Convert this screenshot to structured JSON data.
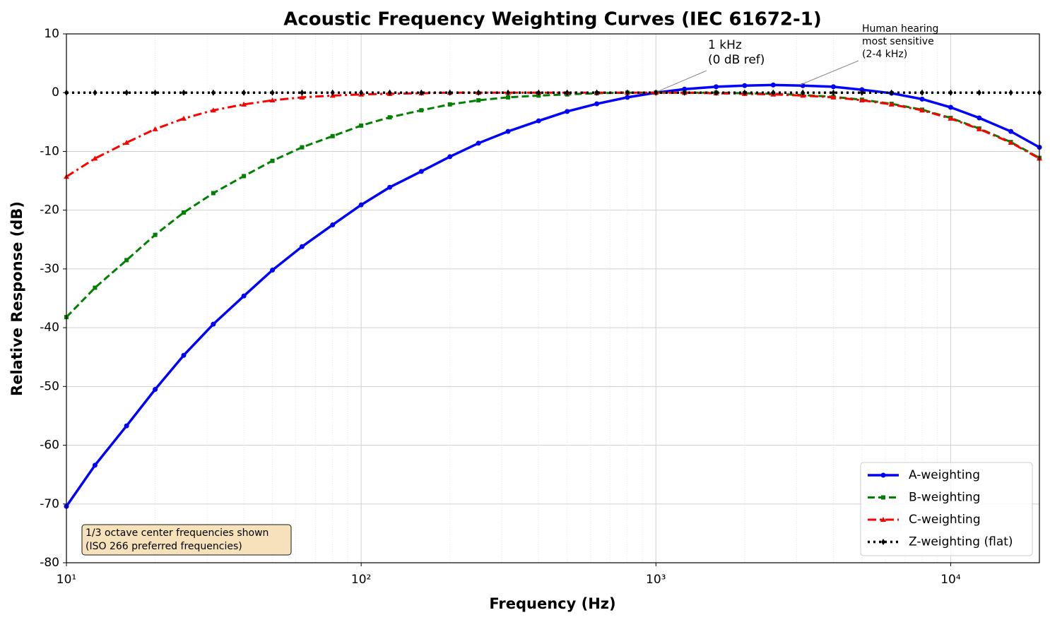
{
  "chart_data": {
    "type": "line",
    "title": "Acoustic Frequency Weighting Curves (IEC 61672-1)",
    "xlabel": "Frequency (Hz)",
    "ylabel": "Relative Response (dB)",
    "x": [
      10,
      12.5,
      16,
      20,
      25,
      31.5,
      40,
      50,
      63,
      80,
      100,
      125,
      160,
      200,
      250,
      315,
      400,
      500,
      630,
      800,
      1000,
      1250,
      1600,
      2000,
      2500,
      3150,
      4000,
      5000,
      6300,
      8000,
      10000,
      12500,
      16000,
      20000
    ],
    "xscale": "log",
    "xlim": [
      10,
      20000
    ],
    "xticks": [
      {
        "value": 10,
        "label": "10¹"
      },
      {
        "value": 100,
        "label": "10²"
      },
      {
        "value": 1000,
        "label": "10³"
      },
      {
        "value": 10000,
        "label": "10⁴"
      }
    ],
    "ylim": [
      -80,
      10
    ],
    "yticks": [
      -80,
      -70,
      -60,
      -50,
      -40,
      -30,
      -20,
      -10,
      0,
      10
    ],
    "grid": true,
    "minor_grid": true,
    "legend": "lower right",
    "series": [
      {
        "name": "A-weighting",
        "color": "#0000ff",
        "linestyle": "solid",
        "marker": "circle",
        "values": [
          -70.4,
          -63.4,
          -56.7,
          -50.5,
          -44.7,
          -39.4,
          -34.6,
          -30.2,
          -26.2,
          -22.5,
          -19.1,
          -16.1,
          -13.4,
          -10.9,
          -8.6,
          -6.6,
          -4.8,
          -3.2,
          -1.9,
          -0.8,
          0,
          0.6,
          1.0,
          1.2,
          1.3,
          1.2,
          1.0,
          0.5,
          -0.1,
          -1.1,
          -2.5,
          -4.3,
          -6.6,
          -9.3
        ]
      },
      {
        "name": "B-weighting",
        "color": "#008000",
        "linestyle": "dashed",
        "marker": "square",
        "values": [
          -38.2,
          -33.2,
          -28.5,
          -24.2,
          -20.4,
          -17.1,
          -14.2,
          -11.6,
          -9.3,
          -7.4,
          -5.6,
          -4.2,
          -3.0,
          -2.0,
          -1.3,
          -0.8,
          -0.5,
          -0.3,
          -0.1,
          0,
          0,
          0,
          0,
          -0.1,
          -0.2,
          -0.4,
          -0.7,
          -1.2,
          -1.9,
          -2.9,
          -4.3,
          -6.1,
          -8.4,
          -11.1
        ]
      },
      {
        "name": "C-weighting",
        "color": "#ff0000",
        "linestyle": "dashdot",
        "marker": "triangle",
        "values": [
          -14.3,
          -11.2,
          -8.5,
          -6.2,
          -4.4,
          -3.0,
          -2.0,
          -1.3,
          -0.8,
          -0.5,
          -0.3,
          -0.2,
          -0.1,
          0,
          0,
          0,
          0,
          0,
          0,
          0,
          0,
          0,
          -0.1,
          -0.2,
          -0.3,
          -0.5,
          -0.8,
          -1.3,
          -2.0,
          -3.0,
          -4.4,
          -6.2,
          -8.5,
          -11.2
        ]
      },
      {
        "name": "Z-weighting (flat)",
        "color": "#000000",
        "linestyle": "dotted",
        "marker": "diamond",
        "values": [
          0,
          0,
          0,
          0,
          0,
          0,
          0,
          0,
          0,
          0,
          0,
          0,
          0,
          0,
          0,
          0,
          0,
          0,
          0,
          0,
          0,
          0,
          0,
          0,
          0,
          0,
          0,
          0,
          0,
          0,
          0,
          0,
          0,
          0
        ]
      }
    ],
    "annotations": [
      {
        "text": [
          "1 kHz",
          "(0 dB ref)"
        ]
      },
      {
        "text": [
          "Human hearing",
          "most sensitive",
          "(2-4 kHz)"
        ]
      }
    ],
    "note": [
      "1/3 octave center frequencies shown",
      "(ISO 266 preferred frequencies)"
    ]
  }
}
